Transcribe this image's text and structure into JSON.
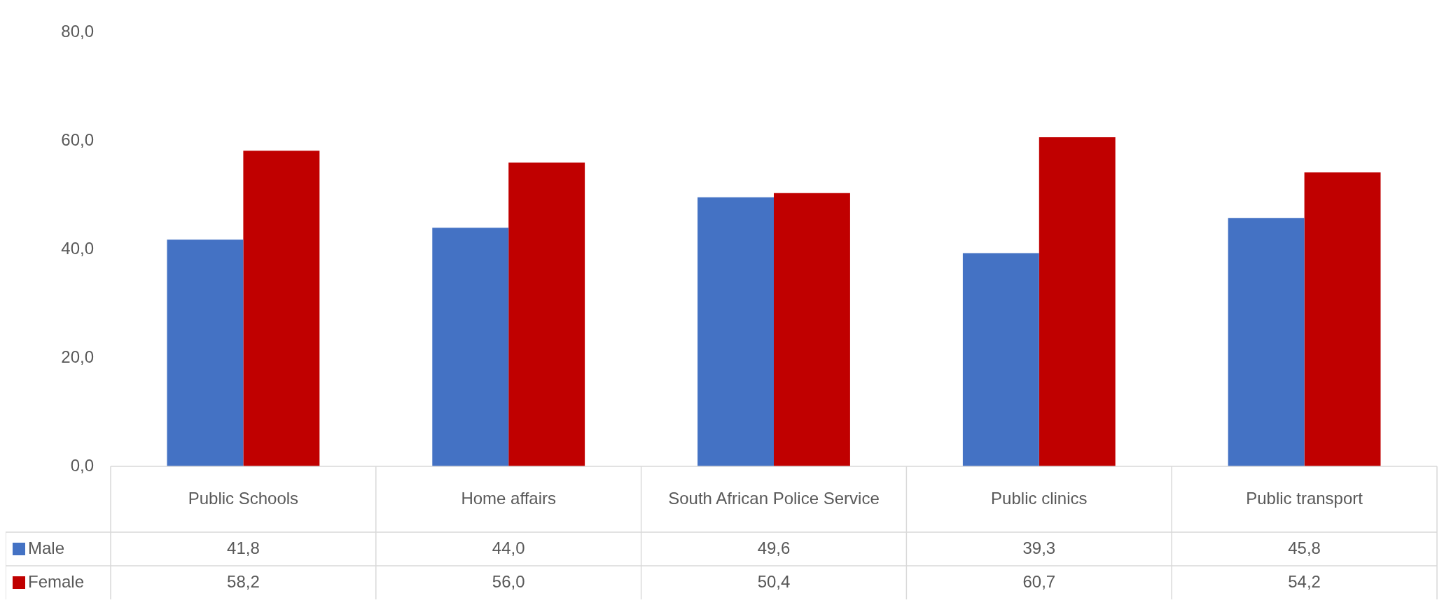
{
  "chart_data": {
    "type": "bar",
    "categories": [
      "Public Schools",
      "Home affairs",
      "South African Police Service",
      "Public clinics",
      "Public transport"
    ],
    "series": [
      {
        "name": "Male",
        "color": "#4472c4",
        "values": [
          41.8,
          44.0,
          49.6,
          39.3,
          45.8
        ],
        "value_labels": [
          "41,8",
          "44,0",
          "49,6",
          "39,3",
          "45,8"
        ]
      },
      {
        "name": "Female",
        "color": "#c00000",
        "values": [
          58.2,
          56.0,
          50.4,
          60.7,
          54.2
        ],
        "value_labels": [
          "58,2",
          "56,0",
          "50,4",
          "60,7",
          "54,2"
        ]
      }
    ],
    "ylim": [
      0,
      80
    ],
    "yticks": [
      {
        "value": 0,
        "label": "0,0"
      },
      {
        "value": 20,
        "label": "20,0"
      },
      {
        "value": 40,
        "label": "40,0"
      },
      {
        "value": 60,
        "label": "60,0"
      },
      {
        "value": 80,
        "label": "80,0"
      }
    ],
    "grid": false,
    "legend": "bottom"
  }
}
